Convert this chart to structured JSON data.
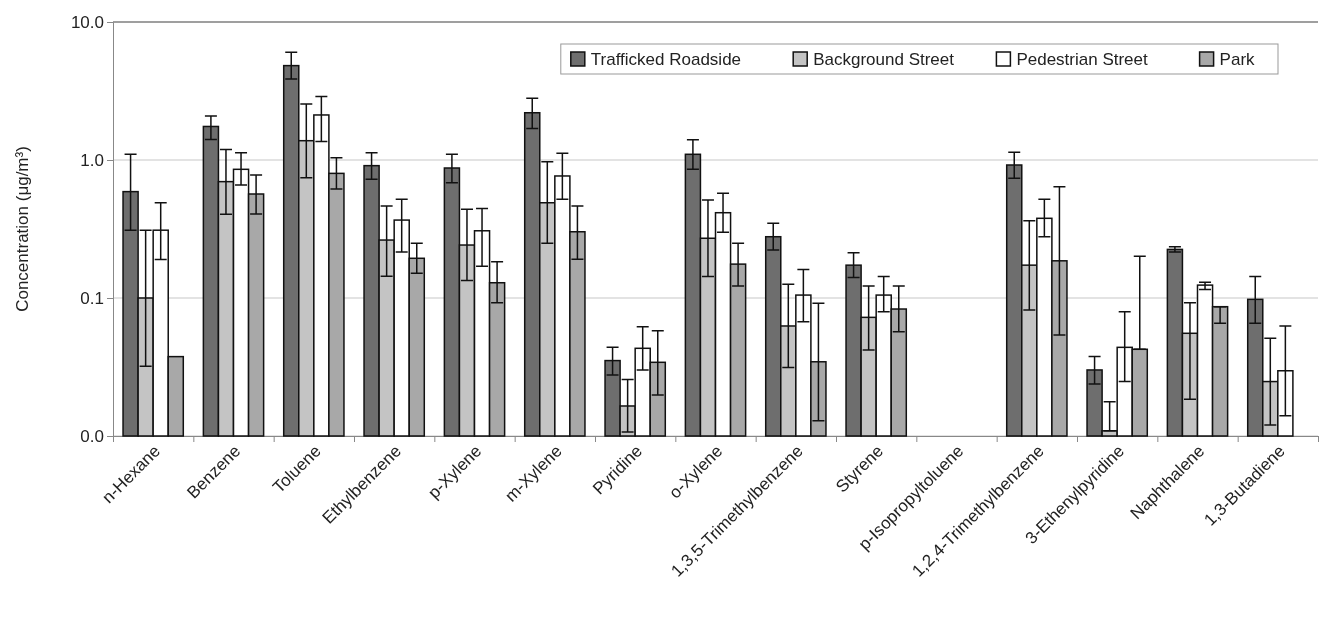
{
  "chart_data": {
    "type": "bar",
    "ylabel": "Concentration (μg/m³)",
    "log": true,
    "ylim": [
      0.01,
      10
    ],
    "yticks": [
      {
        "value": 0.01,
        "label": "0.0"
      },
      {
        "value": 0.1,
        "label": "0.1"
      },
      {
        "value": 1,
        "label": "1.0"
      },
      {
        "value": 10,
        "label": "10.0"
      }
    ],
    "grid": "y",
    "legend": "top right",
    "categories": [
      "n-Hexane",
      "Benzene",
      "Toluene",
      "Ethylbenzene",
      "p-Xylene",
      "m-Xylene",
      "Pyridine",
      "o-Xylene",
      "1,3,5-Trimethylbenzene",
      "Styrene",
      "p-Isopropyltoluene",
      "1,2,4-Trimethylbenzene",
      "3-Ethenylpyridine",
      "Naphthalene",
      "1,3-Butadiene"
    ],
    "series": [
      {
        "name": "Trafficked Roadside",
        "color": "#6e6e6e",
        "values": [
          0.59,
          1.75,
          4.83,
          0.91,
          0.875,
          2.2,
          0.0352,
          1.1,
          0.278,
          0.173,
          null,
          0.92,
          0.0301,
          0.225,
          0.0978
        ],
        "errors": [
          [
            0.31,
            1.1
          ],
          [
            1.41,
            2.08
          ],
          [
            3.86,
            6.03
          ],
          [
            0.724,
            1.13
          ],
          [
            0.685,
            1.1
          ],
          [
            1.69,
            2.8
          ],
          [
            0.0277,
            0.0439
          ],
          [
            0.856,
            1.4
          ],
          [
            0.223,
            0.348
          ],
          [
            0.141,
            0.213
          ],
          null,
          [
            0.736,
            1.14
          ],
          [
            0.0238,
            0.0376
          ],
          [
            0.215,
            0.235
          ],
          [
            0.0655,
            0.143
          ]
        ]
      },
      {
        "name": "Background Street",
        "color": "#c4c4c4",
        "values": [
          0.1,
          0.697,
          1.38,
          0.263,
          0.242,
          0.49,
          0.0165,
          0.271,
          0.0627,
          0.0724,
          null,
          0.173,
          0.0109,
          0.0555,
          0.0248
        ],
        "errors": [
          [
            0.032,
            0.31
          ],
          [
            0.404,
            1.19
          ],
          [
            0.745,
            2.55
          ],
          [
            0.144,
            0.464
          ],
          [
            0.134,
            0.439
          ],
          [
            0.249,
            0.973
          ],
          [
            0.0107,
            0.0257
          ],
          [
            0.143,
            0.513
          ],
          [
            0.0313,
            0.126
          ],
          [
            0.042,
            0.122
          ],
          null,
          [
            0.0819,
            0.363
          ],
          [
            0.0109,
            0.0177
          ],
          [
            0.0185,
            0.0925
          ],
          [
            0.012,
            0.051
          ]
        ]
      },
      {
        "name": "Pedestrian Street",
        "color": "#ffffff",
        "values": [
          0.31,
          0.856,
          2.12,
          0.367,
          0.307,
          0.766,
          0.0432,
          0.415,
          0.105,
          0.105,
          null,
          0.378,
          0.0439,
          0.124,
          0.0297
        ],
        "errors": [
          [
            0.19,
            0.49
          ],
          [
            0.659,
            1.13
          ],
          [
            1.36,
            2.88
          ],
          [
            0.215,
            0.519
          ],
          [
            0.17,
            0.446
          ],
          [
            0.519,
            1.12
          ],
          [
            0.0301,
            0.062
          ],
          [
            0.3,
            0.573
          ],
          [
            0.0673,
            0.161
          ],
          [
            0.0796,
            0.143
          ],
          null,
          [
            0.278,
            0.519
          ],
          [
            0.0248,
            0.0796
          ],
          [
            0.115,
            0.13
          ],
          [
            0.014,
            0.0627
          ]
        ]
      },
      {
        "name": "Park",
        "color": "#a8a8a8",
        "values": [
          0.0376,
          0.567,
          0.8,
          0.194,
          0.129,
          0.302,
          0.0342,
          0.176,
          0.0345,
          0.0832,
          null,
          0.186,
          0.0425,
          0.0865,
          null
        ],
        "errors": [
          null,
          [
            0.406,
            0.779
          ],
          [
            0.617,
            1.04
          ],
          [
            0.151,
            0.249
          ],
          [
            0.0925,
            0.183
          ],
          [
            0.191,
            0.464
          ],
          [
            0.0198,
            0.058
          ],
          [
            0.122,
            0.249
          ],
          [
            0.0129,
            0.0915
          ],
          [
            0.057,
            0.122
          ],
          null,
          [
            0.054,
            0.641
          ],
          [
            0.0425,
            0.201
          ],
          [
            0.0655,
            0.0865
          ],
          null
        ]
      }
    ]
  }
}
